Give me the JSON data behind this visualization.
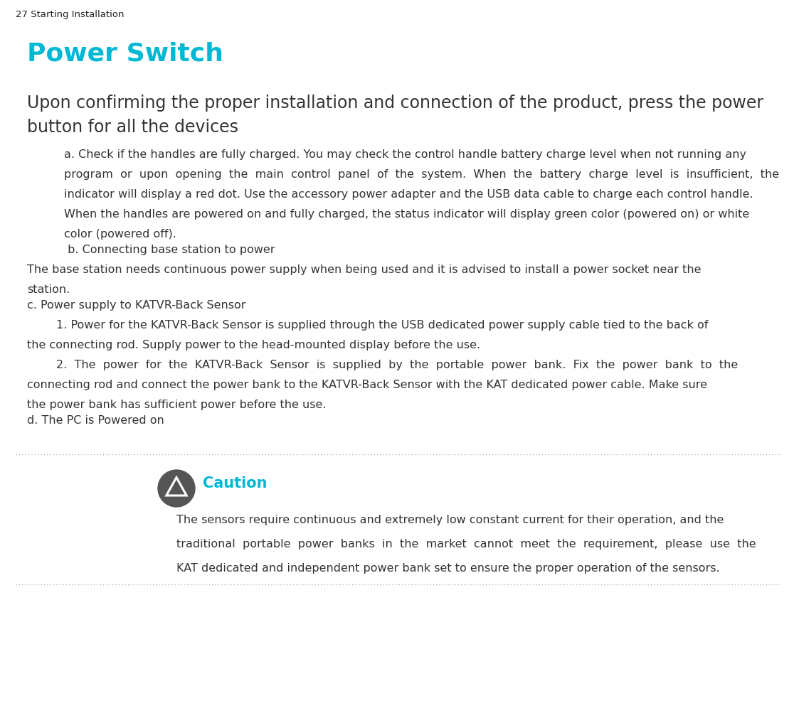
{
  "bg_color": "#ffffff",
  "page_label": "27 Starting Installation",
  "page_label_color": "#222222",
  "page_label_fontsize": 9.5,
  "title": "Power Switch",
  "title_color": "#00b8d4",
  "title_fontsize": 26,
  "subtitle_line1": "Upon confirming the proper installation and connection of the product, press the power",
  "subtitle_line2": "button for all the devices",
  "subtitle_color": "#333333",
  "subtitle_fontsize": 17,
  "body_color": "#333333",
  "body_fontsize": 11.5,
  "para_a_line1": "a. Check if the handles are fully charged. You may check the control handle battery charge level when not running any",
  "para_a_line2": "program  or  upon  opening  the  main  control  panel  of  the  system.  When  the  battery  charge  level  is  insufficient,  the",
  "para_a_line3": "indicator will display a red dot. Use the accessory power adapter and the USB data cable to charge each control handle.",
  "para_a_line4": "When the handles are powered on and fully charged, the status indicator will display green color (powered on) or white",
  "para_a_line5": "color (powered off).",
  "para_b_header": " b. Connecting base station to power",
  "para_b_body_line1": "The base station needs continuous power supply when being used and it is advised to install a power socket near the",
  "para_b_body_line2": "station.",
  "para_c_header": "c. Power supply to KATVR-Back Sensor",
  "para_c1_line1": "        1. Power for the KATVR-Back Sensor is supplied through the USB dedicated power supply cable tied to the back of",
  "para_c1_line2": "the connecting rod. Supply power to the head-mounted display before the use.",
  "para_c2_line1": "        2.  The  power  for  the  KATVR-Back  Sensor  is  supplied  by  the  portable  power  bank.  Fix  the  power  bank  to  the",
  "para_c2_line2": "connecting rod and connect the power bank to the KATVR-Back Sensor with the KAT dedicated power cable. Make sure",
  "para_c2_line3": "the power bank has sufficient power before the use.",
  "para_d_header": "d. The PC is Powered on",
  "caution_title": "Caution",
  "caution_title_color": "#00b8d4",
  "caution_title_fontsize": 15,
  "caution_body_line1": "The sensors require continuous and extremely low constant current for their operation, and the",
  "caution_body_line2": "traditional  portable  power  banks  in  the  market  cannot  meet  the  requirement,  please  use  the",
  "caution_body_line3": "KAT dedicated and independent power bank set to ensure the proper operation of the sensors.",
  "caution_body_fontsize": 11.5,
  "dot_line_color": "#aaaaaa",
  "icon_circle_color": "#555555",
  "icon_triangle_color": "#ffffff"
}
